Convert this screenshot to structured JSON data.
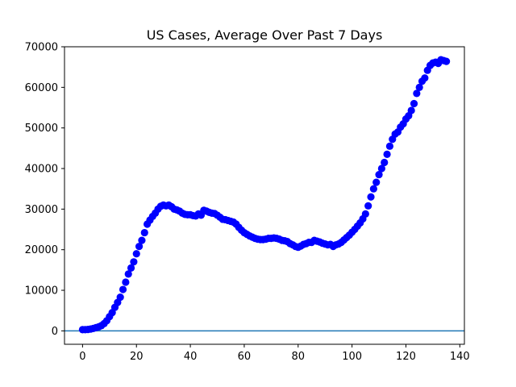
{
  "chart_data": {
    "type": "scatter",
    "title": "US Cases, Average Over Past 7 Days",
    "xlabel": "",
    "ylabel": "",
    "xlim": [
      -6.7,
      141.7
    ],
    "ylim": [
      -3300,
      70000
    ],
    "x_ticks": [
      0,
      20,
      40,
      60,
      80,
      100,
      120,
      140
    ],
    "y_ticks": [
      0,
      10000,
      20000,
      30000,
      40000,
      50000,
      60000,
      70000
    ],
    "x_tick_labels": [
      "0",
      "20",
      "40",
      "60",
      "80",
      "100",
      "120",
      "140"
    ],
    "y_tick_labels": [
      "0",
      "10000",
      "20000",
      "30000",
      "40000",
      "50000",
      "60000",
      "70000"
    ],
    "grid": false,
    "marker_color": "#0000ff",
    "baseline": {
      "y": 0,
      "color": "#1f77b4"
    },
    "x": [
      0,
      1,
      2,
      3,
      4,
      5,
      6,
      7,
      8,
      9,
      10,
      11,
      12,
      13,
      14,
      15,
      16,
      17,
      18,
      19,
      20,
      21,
      22,
      23,
      24,
      25,
      26,
      27,
      28,
      29,
      30,
      31,
      32,
      33,
      34,
      35,
      36,
      37,
      38,
      39,
      40,
      41,
      42,
      43,
      44,
      45,
      46,
      47,
      48,
      49,
      50,
      51,
      52,
      53,
      54,
      55,
      56,
      57,
      58,
      59,
      60,
      61,
      62,
      63,
      64,
      65,
      66,
      67,
      68,
      69,
      70,
      71,
      72,
      73,
      74,
      75,
      76,
      77,
      78,
      79,
      80,
      81,
      82,
      83,
      84,
      85,
      86,
      87,
      88,
      89,
      90,
      91,
      92,
      93,
      94,
      95,
      96,
      97,
      98,
      99,
      100,
      101,
      102,
      103,
      104,
      105,
      106,
      107,
      108,
      109,
      110,
      111,
      112,
      113,
      114,
      115,
      116,
      117,
      118,
      119,
      120,
      121,
      122,
      123,
      124,
      125,
      126,
      127,
      128,
      129,
      130,
      131,
      132,
      133,
      134,
      135
    ],
    "y": [
      300,
      300,
      350,
      450,
      600,
      800,
      1000,
      1300,
      1800,
      2500,
      3500,
      4500,
      5800,
      7000,
      8300,
      10200,
      12000,
      14000,
      15500,
      17000,
      19000,
      20800,
      22300,
      24200,
      26300,
      27300,
      28200,
      29000,
      30000,
      30700,
      31000,
      30800,
      31000,
      30600,
      30000,
      29800,
      29500,
      29000,
      28700,
      28600,
      28600,
      28400,
      28300,
      28800,
      28500,
      29700,
      29500,
      29200,
      29000,
      28900,
      28500,
      28000,
      27500,
      27400,
      27200,
      27000,
      26800,
      26300,
      25500,
      24800,
      24200,
      23800,
      23400,
      23100,
      22800,
      22600,
      22500,
      22500,
      22600,
      22800,
      22800,
      22900,
      22800,
      22600,
      22300,
      22200,
      22000,
      21500,
      21200,
      20800,
      20600,
      20900,
      21300,
      21500,
      21800,
      21800,
      22300,
      22100,
      21900,
      21600,
      21400,
      21200,
      21300,
      20800,
      21200,
      21400,
      21800,
      22400,
      23000,
      23600,
      24300,
      25000,
      25800,
      26600,
      27600,
      28800,
      30800,
      33000,
      35000,
      36600,
      38500,
      40000,
      41500,
      43500,
      45500,
      47200,
      48500,
      49000,
      50200,
      51000,
      52200,
      53000,
      54300,
      56000,
      58500,
      60000,
      61500,
      62300,
      64200,
      65400,
      66000,
      66200,
      65900,
      66800,
      66600,
      66400
    ]
  }
}
